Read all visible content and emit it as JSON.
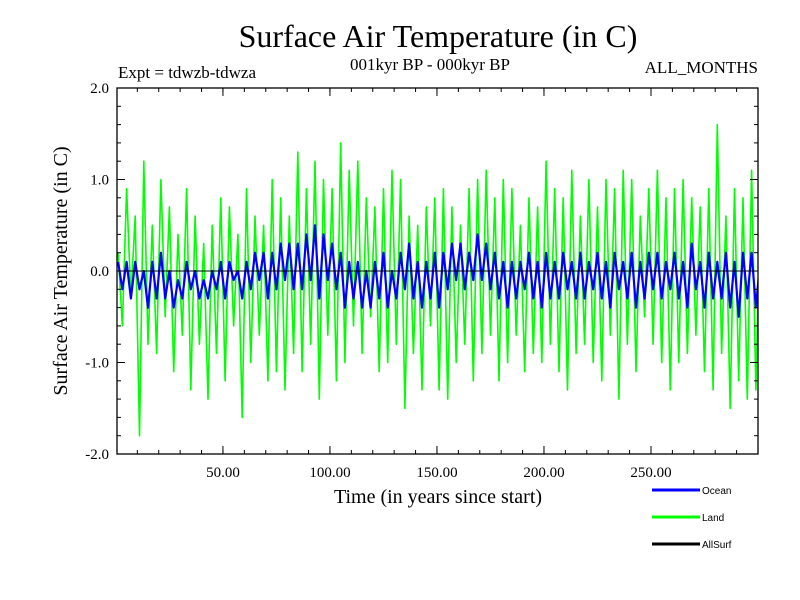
{
  "chart_data": {
    "type": "line",
    "title": "Surface Air Temperature (in C)",
    "subtitle": "001kyr BP - 000kyr BP",
    "experiment": "Expt = tdwzb-tdwza",
    "months": "ALL_MONTHS",
    "xlabel": "Time (in years since start)",
    "ylabel": "Surface Air Temperature (in C)",
    "xlim": [
      0.5,
      300
    ],
    "ylim": [
      -2.0,
      2.0
    ],
    "x_ticks": [
      50,
      100,
      150,
      200,
      250
    ],
    "x_tick_labels": [
      "50.00",
      "100.00",
      "150.00",
      "200.00",
      "250.00"
    ],
    "y_ticks": [
      -2.0,
      -1.0,
      0.0,
      1.0,
      2.0
    ],
    "y_tick_labels": [
      "-2.0",
      "-1.0",
      "0.0",
      "1.0",
      "2.0"
    ],
    "zero_line": 0.0,
    "legend_position": "bottom-right",
    "series": [
      {
        "name": "Land",
        "color": "#00ff00",
        "x_start": 1,
        "x_step": 2,
        "values": [
          0.2,
          -0.6,
          0.9,
          -0.3,
          0.6,
          -1.8,
          1.2,
          -0.8,
          0.5,
          -0.9,
          1.0,
          -0.5,
          0.7,
          -1.1,
          0.4,
          -0.7,
          0.9,
          -1.3,
          0.6,
          -0.8,
          0.3,
          -1.4,
          0.5,
          -0.9,
          0.8,
          -1.2,
          0.7,
          -0.6,
          0.4,
          -1.6,
          0.9,
          -1.0,
          0.6,
          -0.7,
          0.5,
          -1.2,
          1.0,
          -1.1,
          0.8,
          -1.3,
          0.6,
          -0.9,
          1.3,
          -1.1,
          0.9,
          -0.8,
          1.2,
          -1.4,
          1.0,
          -0.7,
          0.9,
          -1.2,
          1.4,
          -1.0,
          1.1,
          -0.6,
          1.2,
          -0.9,
          0.8,
          -0.5,
          0.7,
          -1.1,
          0.9,
          -1.0,
          1.1,
          -0.8,
          1.0,
          -1.5,
          0.6,
          -0.9,
          0.5,
          -1.3,
          0.7,
          -0.6,
          0.8,
          -1.3,
          0.9,
          -1.4,
          0.7,
          -1.0,
          0.5,
          -0.8,
          0.9,
          -1.2,
          1.0,
          -0.9,
          1.1,
          -0.7,
          0.8,
          -1.2,
          1.0,
          -1.0,
          0.9,
          -0.7,
          0.5,
          -1.1,
          0.8,
          -0.9,
          0.7,
          -1.0,
          1.2,
          -0.8,
          0.9,
          -1.1,
          0.8,
          -1.3,
          1.1,
          -0.9,
          0.6,
          -0.8,
          1.0,
          -1.0,
          0.7,
          -1.2,
          1.0,
          -0.7,
          0.9,
          -1.4,
          1.1,
          -0.8,
          1.0,
          -1.1,
          0.6,
          -0.5,
          0.9,
          -0.8,
          1.1,
          -1.0,
          0.8,
          -1.3,
          0.9,
          -1.0,
          1.0,
          -0.9,
          0.8,
          -0.7,
          0.7,
          -1.1,
          0.9,
          -1.3,
          1.6,
          -0.9,
          0.6,
          -1.5,
          0.9,
          -1.2,
          0.8,
          -1.4,
          1.1,
          -1.3,
          0.7,
          -1.0,
          0.6,
          -0.9
        ]
      },
      {
        "name": "Ocean",
        "color": "#0000ff",
        "x_start": 1,
        "x_step": 2,
        "values": [
          0.1,
          -0.2,
          0.1,
          -0.3,
          0.1,
          -0.2,
          0.0,
          -0.4,
          0.1,
          -0.3,
          0.2,
          -0.3,
          0.0,
          -0.4,
          -0.1,
          -0.3,
          0.1,
          -0.2,
          0.0,
          -0.3,
          -0.1,
          -0.3,
          0.0,
          -0.2,
          0.1,
          -0.3,
          0.1,
          -0.1,
          0.0,
          -0.3,
          0.1,
          -0.2,
          0.2,
          -0.1,
          0.2,
          -0.3,
          0.2,
          -0.2,
          0.3,
          -0.1,
          0.3,
          -0.2,
          0.3,
          -0.2,
          0.4,
          -0.1,
          0.5,
          -0.3,
          0.4,
          -0.1,
          0.3,
          -0.2,
          0.2,
          -0.4,
          0.1,
          -0.3,
          0.1,
          -0.4,
          0.0,
          -0.4,
          0.1,
          -0.3,
          0.2,
          -0.4,
          0.0,
          -0.3,
          0.2,
          -0.2,
          0.3,
          -0.3,
          0.1,
          -0.4,
          0.1,
          -0.3,
          0.2,
          -0.4,
          0.2,
          -0.2,
          0.3,
          -0.1,
          0.3,
          -0.2,
          0.2,
          -0.1,
          0.4,
          -0.1,
          0.3,
          -0.2,
          0.2,
          -0.3,
          0.1,
          -0.4,
          0.1,
          -0.3,
          0.1,
          -0.2,
          0.2,
          -0.3,
          0.1,
          -0.4,
          0.2,
          -0.3,
          0.1,
          -0.3,
          0.2,
          -0.2,
          0.1,
          -0.3,
          0.2,
          -0.3,
          0.1,
          -0.2,
          0.2,
          -0.3,
          0.1,
          -0.4,
          0.2,
          -0.2,
          0.1,
          -0.3,
          0.2,
          -0.4,
          0.1,
          -0.3,
          0.2,
          -0.2,
          0.2,
          -0.3,
          0.1,
          -0.2,
          0.2,
          -0.3,
          0.1,
          -0.4,
          0.3,
          -0.2,
          0.1,
          -0.4,
          0.2,
          -0.3,
          0.1,
          -0.3,
          0.2,
          -0.4,
          0.1,
          -0.5,
          0.2,
          -0.3,
          0.2,
          -0.4,
          0.1,
          -0.2
        ]
      },
      {
        "name": "AllSurf",
        "color": "#000000",
        "x_start": 1,
        "x_step": 2,
        "values": []
      }
    ]
  }
}
